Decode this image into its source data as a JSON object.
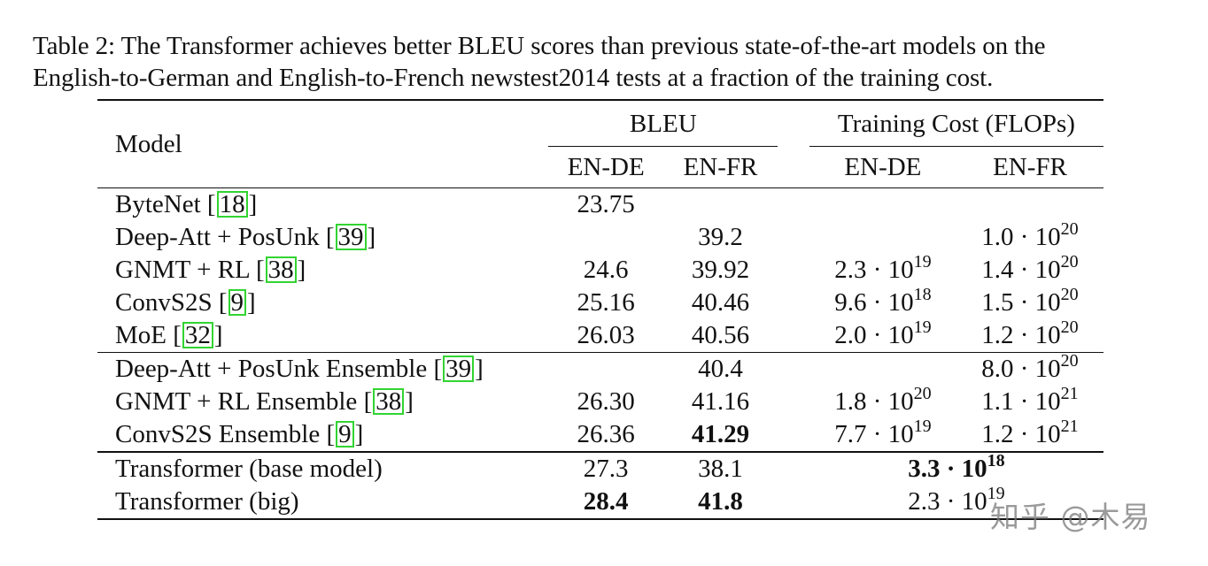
{
  "caption": {
    "line1": "Table 2: The Transformer achieves better BLEU scores than previous state-of-the-art models on the",
    "line2": "English-to-German and English-to-French newstest2014 tests at a fraction of the training cost."
  },
  "headers": {
    "model": "Model",
    "bleu": "BLEU",
    "cost": "Training Cost (FLOPs)",
    "en_de": "EN-DE",
    "en_fr": "EN-FR"
  },
  "groups": [
    {
      "rows": [
        {
          "model": "ByteNet",
          "ref": "18",
          "bleu_de": "23.75",
          "bleu_fr": "",
          "cost_de": {
            "m": "",
            "e": ""
          },
          "cost_fr": {
            "m": "",
            "e": ""
          }
        },
        {
          "model": "Deep-Att + PosUnk",
          "ref": "39",
          "bleu_de": "",
          "bleu_fr": "39.2",
          "cost_de": {
            "m": "",
            "e": ""
          },
          "cost_fr": {
            "m": "1.0 · 10",
            "e": "20"
          }
        },
        {
          "model": "GNMT + RL",
          "ref": "38",
          "bleu_de": "24.6",
          "bleu_fr": "39.92",
          "cost_de": {
            "m": "2.3 · 10",
            "e": "19"
          },
          "cost_fr": {
            "m": "1.4 · 10",
            "e": "20"
          }
        },
        {
          "model": "ConvS2S",
          "ref": "9",
          "bleu_de": "25.16",
          "bleu_fr": "40.46",
          "cost_de": {
            "m": "9.6 · 10",
            "e": "18"
          },
          "cost_fr": {
            "m": "1.5 · 10",
            "e": "20"
          }
        },
        {
          "model": "MoE",
          "ref": "32",
          "bleu_de": "26.03",
          "bleu_fr": "40.56",
          "cost_de": {
            "m": "2.0 · 10",
            "e": "19"
          },
          "cost_fr": {
            "m": "1.2 · 10",
            "e": "20"
          }
        }
      ]
    },
    {
      "rows": [
        {
          "model": "Deep-Att + PosUnk Ensemble",
          "ref": "39",
          "bleu_de": "",
          "bleu_fr": "40.4",
          "cost_de": {
            "m": "",
            "e": ""
          },
          "cost_fr": {
            "m": "8.0 · 10",
            "e": "20"
          }
        },
        {
          "model": "GNMT + RL Ensemble",
          "ref": "38",
          "bleu_de": "26.30",
          "bleu_fr": "41.16",
          "cost_de": {
            "m": "1.8 · 10",
            "e": "20"
          },
          "cost_fr": {
            "m": "1.1 · 10",
            "e": "21"
          }
        },
        {
          "model": "ConvS2S Ensemble",
          "ref": "9",
          "bleu_de": "26.36",
          "bleu_fr": "41.29",
          "bold_fr": true,
          "cost_de": {
            "m": "7.7 · 10",
            "e": "19"
          },
          "cost_fr": {
            "m": "1.2 · 10",
            "e": "21"
          }
        }
      ]
    }
  ],
  "transformer_rows": [
    {
      "model": "Transformer (base model)",
      "bleu_de": "27.3",
      "bleu_fr": "38.1",
      "cost": {
        "m": "3.3 · 10",
        "e": "18"
      },
      "bold_de": false,
      "bold_fr": false,
      "bold_cost": true
    },
    {
      "model": "Transformer (big)",
      "bleu_de": "28.4",
      "bleu_fr": "41.8",
      "cost": {
        "m": "2.3 · 10",
        "e": "19"
      },
      "bold_de": true,
      "bold_fr": true,
      "bold_cost": false
    }
  ],
  "watermark": "知乎 @木易"
}
